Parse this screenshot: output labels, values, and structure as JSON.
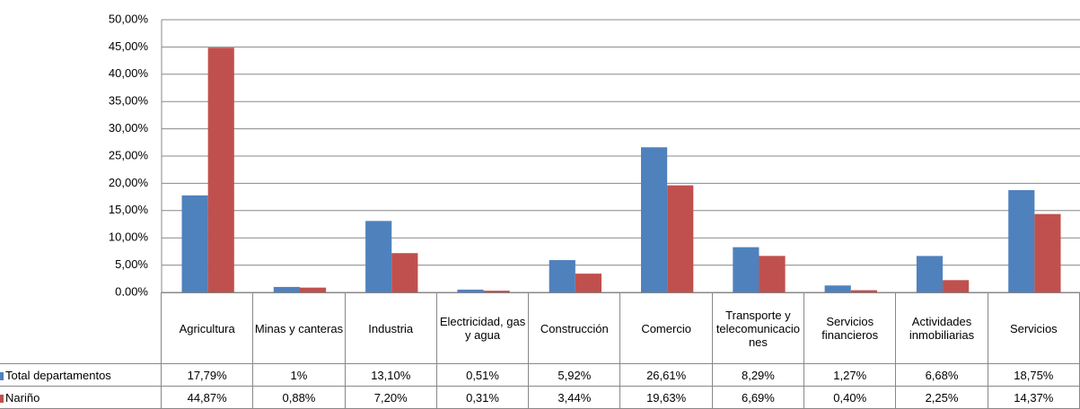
{
  "chart_data": {
    "type": "bar",
    "categories": [
      "Agricultura",
      "Minas y canteras",
      "Industria",
      "Electricidad, gas y agua",
      "Construcción",
      "Comercio",
      "Transporte y telecomunicaciones",
      "Servicios financieros",
      "Actividades inmobiliarias",
      "Servicios"
    ],
    "series": [
      {
        "name": "Total departamentos",
        "color": "#4f81bd",
        "values": [
          17.79,
          1,
          13.1,
          0.51,
          5.92,
          26.61,
          8.29,
          1.27,
          6.68,
          18.75
        ],
        "value_labels": [
          "17,79%",
          "1%",
          "13,10%",
          "0,51%",
          "5,92%",
          "26,61%",
          "8,29%",
          "1,27%",
          "6,68%",
          "18,75%"
        ]
      },
      {
        "name": "Nariño",
        "color": "#c0504d",
        "values": [
          44.87,
          0.88,
          7.2,
          0.31,
          3.44,
          19.63,
          6.69,
          0.4,
          2.25,
          14.37
        ],
        "value_labels": [
          "44,87%",
          "0,88%",
          "7,20%",
          "0,31%",
          "3,44%",
          "19,63%",
          "6,69%",
          "0,40%",
          "2,25%",
          "14,37%"
        ]
      }
    ],
    "ylim": [
      0,
      50
    ],
    "yticks": [
      {
        "value": 0,
        "label": "0,00%"
      },
      {
        "value": 5,
        "label": "5,00%"
      },
      {
        "value": 10,
        "label": "10,00%"
      },
      {
        "value": 15,
        "label": "15,00%"
      },
      {
        "value": 20,
        "label": "20,00%"
      },
      {
        "value": 25,
        "label": "25,00%"
      },
      {
        "value": 30,
        "label": "30,00%"
      },
      {
        "value": 35,
        "label": "35,00%"
      },
      {
        "value": 40,
        "label": "40,00%"
      },
      {
        "value": 45,
        "label": "45,00%"
      },
      {
        "value": 50,
        "label": "50,00%"
      }
    ],
    "grid": true
  }
}
